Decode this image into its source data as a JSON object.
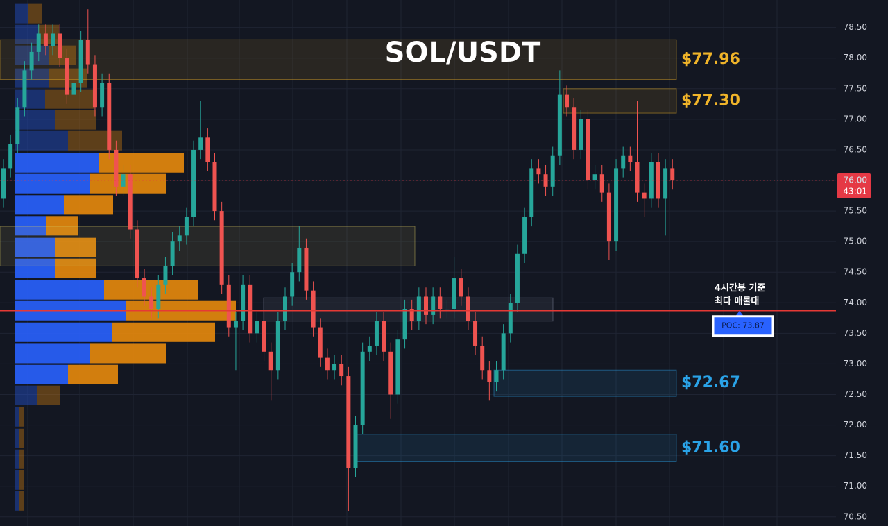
{
  "chart_data": {
    "type": "candlestick",
    "title": "SOL/USDT",
    "ylim": [
      70.35,
      78.95
    ],
    "yticks": [
      {
        "value": 70.5,
        "label": "70.50"
      },
      {
        "value": 71,
        "label": "71.00"
      },
      {
        "value": 71.5,
        "label": "71.50"
      },
      {
        "value": 72,
        "label": "72.00"
      },
      {
        "value": 72.5,
        "label": "72.50"
      },
      {
        "value": 73,
        "label": "73.00"
      },
      {
        "value": 73.5,
        "label": "73.50"
      },
      {
        "value": 74,
        "label": "74.00"
      },
      {
        "value": 74.5,
        "label": "74.50"
      },
      {
        "value": 75,
        "label": "75.00"
      },
      {
        "value": 75.5,
        "label": "75.50"
      },
      {
        "value": 76,
        "label": "76.00"
      },
      {
        "value": 76.5,
        "label": "76.50"
      },
      {
        "value": 77,
        "label": "77.00"
      },
      {
        "value": 77.5,
        "label": "77.50"
      },
      {
        "value": 78,
        "label": "78.00"
      },
      {
        "value": 78.5,
        "label": "78.50"
      }
    ],
    "grid": true,
    "up_color": "#26a69a",
    "down_color": "#ef5350",
    "open": [
      75.7,
      76.2,
      76.6,
      77.2,
      77.8,
      78.1,
      78.4,
      78.2,
      78.4,
      78.0,
      77.4,
      77.6,
      78.3,
      77.9,
      77.2,
      77.6,
      76.5,
      75.9,
      76.1,
      75.2,
      74.4,
      74.1,
      73.9,
      74.3,
      74.6,
      75.0,
      75.1,
      75.4,
      76.5,
      76.7,
      76.3,
      75.5,
      74.3,
      73.6,
      73.7,
      74.3,
      73.5,
      73.7,
      73.2,
      72.9,
      73.7,
      74.1,
      74.5,
      74.9,
      74.2,
      73.6,
      73.1,
      72.9,
      73.0,
      72.8,
      71.3,
      72.0,
      73.2,
      73.3,
      73.7,
      73.2,
      72.5,
      73.4,
      73.9,
      73.7,
      74.1,
      73.8,
      74.1,
      73.9,
      73.9,
      74.4,
      74.1,
      73.7,
      73.3,
      72.9,
      72.7,
      72.9,
      73.5,
      74.0,
      74.8,
      75.4,
      76.2,
      76.1,
      75.9,
      76.4,
      77.4,
      77.2,
      76.5,
      77.0,
      76.0,
      76.1,
      75.8,
      75.0,
      76.2,
      76.4,
      76.3,
      75.8,
      75.7,
      76.3,
      75.7,
      76.2
    ],
    "high": [
      76.35,
      76.75,
      77.35,
      77.95,
      78.25,
      78.55,
      78.55,
      78.55,
      78.55,
      78.15,
      77.75,
      78.45,
      78.8,
      78.05,
      77.75,
      77.75,
      76.65,
      76.25,
      76.25,
      75.35,
      74.55,
      74.25,
      74.45,
      74.75,
      75.15,
      75.25,
      75.55,
      76.65,
      77.3,
      76.85,
      76.45,
      75.65,
      74.45,
      73.85,
      74.45,
      74.45,
      73.85,
      73.85,
      73.35,
      73.85,
      74.25,
      74.65,
      75.25,
      75.05,
      74.35,
      73.75,
      73.25,
      73.15,
      73.15,
      72.95,
      72.15,
      73.35,
      73.45,
      73.85,
      73.85,
      73.35,
      73.55,
      74.05,
      74.05,
      74.25,
      74.25,
      74.25,
      74.25,
      74.05,
      74.75,
      74.55,
      74.25,
      73.85,
      73.45,
      73.05,
      73.05,
      73.65,
      74.15,
      74.95,
      75.55,
      76.35,
      76.35,
      76.25,
      76.55,
      77.8,
      77.55,
      77.35,
      77.15,
      77.15,
      76.25,
      76.25,
      75.95,
      76.35,
      76.55,
      76.55,
      77.3,
      75.95,
      76.45,
      76.45,
      76.35,
      76.35
    ],
    "low": [
      75.55,
      76.05,
      76.45,
      77.05,
      77.65,
      77.95,
      78.05,
      78.05,
      77.85,
      77.25,
      77.25,
      77.45,
      77.75,
      77.05,
      77.05,
      76.35,
      75.75,
      75.75,
      75.05,
      74.25,
      73.95,
      73.75,
      73.75,
      74.15,
      74.45,
      74.85,
      74.95,
      75.25,
      76.35,
      76.15,
      75.35,
      74.15,
      73.45,
      72.9,
      73.55,
      73.35,
      73.35,
      73.05,
      72.4,
      72.75,
      73.55,
      73.95,
      74.35,
      74.05,
      73.45,
      72.95,
      72.75,
      72.75,
      72.65,
      70.6,
      71.15,
      71.85,
      73.05,
      73.15,
      73.05,
      72.1,
      72.35,
      73.25,
      73.55,
      73.55,
      73.65,
      73.65,
      73.75,
      73.75,
      73.75,
      73.95,
      73.55,
      73.15,
      72.75,
      72.4,
      72.55,
      72.75,
      73.35,
      73.85,
      74.65,
      75.25,
      75.95,
      75.75,
      75.75,
      76.25,
      77.05,
      76.35,
      76.35,
      75.85,
      75.85,
      75.65,
      74.7,
      74.85,
      76.05,
      76.15,
      75.65,
      75.4,
      75.55,
      75.55,
      75.1,
      75.85
    ],
    "close": [
      76.2,
      76.6,
      77.2,
      77.8,
      78.1,
      78.4,
      78.2,
      78.4,
      78.0,
      77.4,
      77.6,
      78.3,
      77.9,
      77.2,
      77.6,
      76.5,
      75.9,
      76.1,
      75.2,
      74.4,
      74.1,
      73.9,
      74.3,
      74.6,
      75.0,
      75.1,
      75.4,
      76.5,
      76.7,
      76.3,
      75.5,
      74.3,
      73.6,
      73.7,
      74.3,
      73.5,
      73.7,
      73.2,
      72.9,
      73.7,
      74.1,
      74.5,
      74.9,
      74.2,
      73.6,
      73.1,
      72.9,
      73.0,
      72.8,
      71.3,
      72.0,
      73.2,
      73.3,
      73.7,
      73.2,
      72.5,
      73.4,
      73.9,
      73.7,
      74.1,
      73.8,
      74.1,
      73.9,
      73.9,
      74.4,
      74.1,
      73.7,
      73.3,
      72.9,
      72.7,
      72.9,
      73.5,
      74.0,
      74.8,
      75.4,
      76.2,
      76.1,
      75.9,
      76.4,
      77.4,
      77.2,
      76.5,
      77.0,
      76.0,
      76.1,
      75.8,
      75.0,
      76.2,
      76.4,
      76.3,
      75.8,
      75.7,
      76.3,
      75.7,
      76.2,
      76.0
    ],
    "zones": [
      {
        "top": 78.3,
        "bottom": 77.65,
        "label": "$77.96",
        "color": "#f0b429"
      },
      {
        "top": 77.5,
        "bottom": 77.1,
        "label": "$77.30",
        "color": "#f0b429"
      },
      {
        "top": 75.25,
        "bottom": 74.6,
        "color": "#d8c860"
      },
      {
        "top": 74.08,
        "bottom": 73.7,
        "color": "#8a93a6"
      },
      {
        "top": 72.9,
        "bottom": 72.47,
        "label": "$72.67",
        "color": "#2aa3e8"
      },
      {
        "top": 71.85,
        "bottom": 71.4,
        "label": "$71.60",
        "color": "#2aa3e8"
      }
    ],
    "volume_profile": {
      "buy_color": "#2962ff",
      "sell_color": "#e8890c",
      "value_area": [
        72.7,
        76.45
      ],
      "levels": [
        78.727,
        78.386,
        78.046,
        77.672,
        77.331,
        76.991,
        76.65,
        76.287,
        75.947,
        75.599,
        75.259,
        74.903,
        74.562,
        74.211,
        73.87,
        73.518,
        73.17,
        72.826,
        72.486,
        72.134,
        71.782,
        71.442,
        71.101,
        70.761
      ],
      "buy": [
        18,
        33,
        48,
        48,
        43,
        58,
        76,
        121,
        108,
        70,
        44,
        58,
        58,
        128,
        160,
        140,
        108,
        76,
        31,
        6,
        6,
        6,
        6,
        6
      ],
      "sell": [
        20,
        30,
        40,
        55,
        70,
        58,
        78,
        122,
        110,
        71,
        46,
        58,
        58,
        135,
        158,
        148,
        110,
        72,
        33,
        7,
        7,
        7,
        7,
        7
      ]
    },
    "poc": {
      "value": 73.87,
      "label": "POC: 73.87",
      "color": "#e53935"
    },
    "annotation": [
      "4시간봉 기준",
      "최다 매물대"
    ],
    "last_price": {
      "value": 76.0,
      "label": "76.00",
      "countdown": "43:01",
      "color": "#e53945"
    }
  }
}
